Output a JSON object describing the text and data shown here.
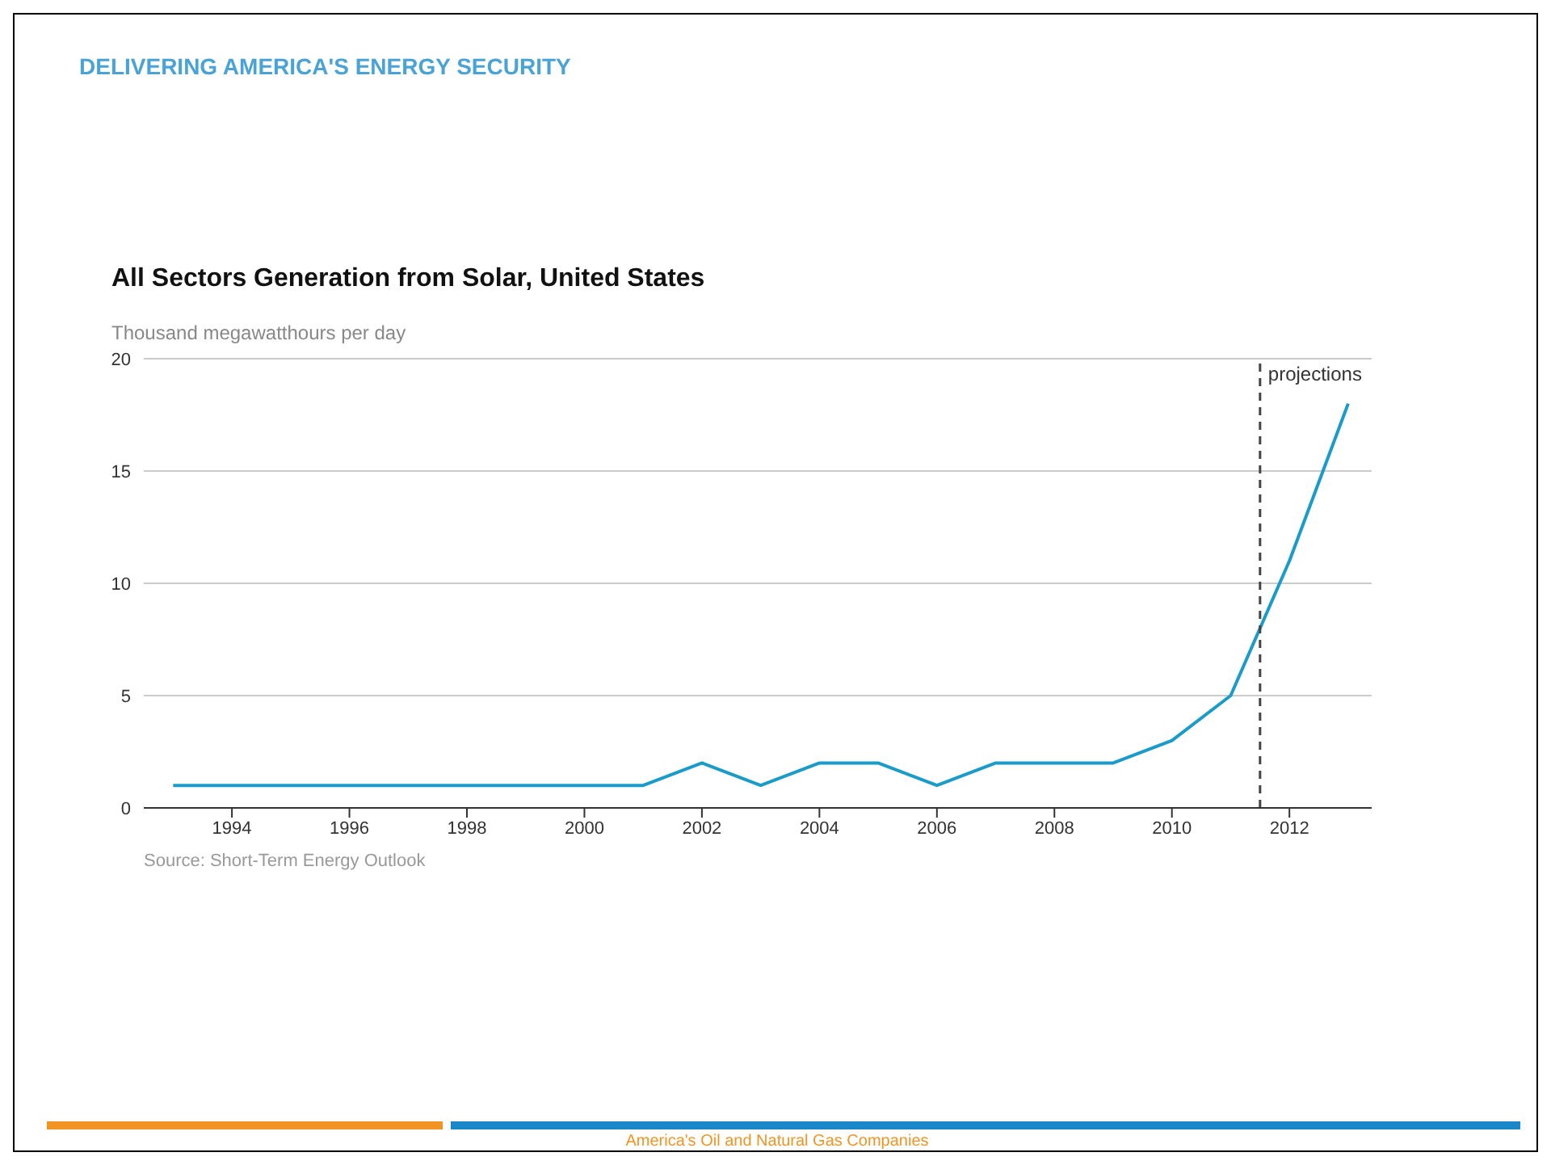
{
  "chart_data": {
    "type": "line",
    "title": "All Sectors Generation from Solar, United States",
    "ylabel": "Thousand megawatthours per day",
    "x": [
      1993,
      1994,
      1995,
      1996,
      1997,
      1998,
      1999,
      2000,
      2001,
      2002,
      2003,
      2004,
      2005,
      2006,
      2007,
      2008,
      2009,
      2010,
      2011,
      2012,
      2013
    ],
    "series": [
      {
        "color": "#1a9bc9",
        "values": [
          1,
          1,
          1,
          1,
          1,
          1,
          1,
          1,
          1,
          2,
          1,
          2,
          2,
          1,
          2,
          2,
          2,
          3,
          5,
          11,
          18
        ]
      }
    ],
    "xlim": [
      1992.5,
      2013.4
    ],
    "xticks": [
      1994,
      1996,
      1998,
      2000,
      2002,
      2004,
      2006,
      2008,
      2010,
      2012
    ],
    "ylim": [
      0,
      20
    ],
    "yticks": [
      0,
      5,
      10,
      15,
      20
    ],
    "grid": "y",
    "marker": "none",
    "line_style": "solid",
    "ref_lines": [
      {
        "axis": "x",
        "value": 2011.5,
        "label": "projections",
        "color": "#444444",
        "line_style": "dashed"
      }
    ],
    "annotations": [
      "DELIVERING AMERICA'S ENERGY SECURITY",
      "Source: Short-Term Energy Outlook",
      "America's Oil and Natural Gas Companies"
    ]
  }
}
